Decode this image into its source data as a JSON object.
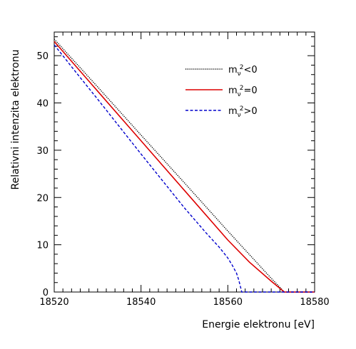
{
  "chart_data": {
    "type": "line",
    "xlabel": "Energie elektronu [eV]",
    "ylabel": "Relativni intenzita elektronu",
    "xlim": [
      18520,
      18580
    ],
    "ylim": [
      0,
      55
    ],
    "x_ticks": [
      18520,
      18540,
      18560,
      18580
    ],
    "y_ticks": [
      0,
      10,
      20,
      30,
      40,
      50
    ],
    "legend_position": "top-right",
    "series": [
      {
        "name": "m_ν²<0",
        "name_parts": [
          "m",
          "ν",
          "2",
          "<0"
        ],
        "color": "#000000",
        "style": "dotted",
        "x": [
          18520,
          18530,
          18540,
          18550,
          18560,
          18565,
          18568,
          18570,
          18572,
          18573,
          18580
        ],
        "y": [
          53.5,
          43.4,
          33.2,
          23.1,
          12.9,
          7.9,
          4.9,
          2.9,
          1.0,
          0,
          0
        ]
      },
      {
        "name": "m_ν²=0",
        "name_parts": [
          "m",
          "ν",
          "2",
          "=0"
        ],
        "color": "#dd0000",
        "style": "solid",
        "x": [
          18520,
          18530,
          18540,
          18550,
          18560,
          18565,
          18570,
          18573,
          18580
        ],
        "y": [
          53.0,
          42.5,
          32.0,
          21.5,
          11.0,
          6.3,
          2.3,
          0,
          0
        ]
      },
      {
        "name": "m_ν²>0",
        "name_parts": [
          "m",
          "ν",
          "2",
          ">0"
        ],
        "color": "#0000cc",
        "style": "dashed",
        "x": [
          18520,
          18525,
          18530,
          18535,
          18540,
          18545,
          18550,
          18555,
          18558,
          18560,
          18561,
          18562,
          18562.5,
          18563,
          18563.2,
          18580
        ],
        "y": [
          52.3,
          46.5,
          40.8,
          35.0,
          29.2,
          23.5,
          17.8,
          12.5,
          9.5,
          7.2,
          5.7,
          4.0,
          2.6,
          0.8,
          0,
          0
        ]
      }
    ]
  }
}
